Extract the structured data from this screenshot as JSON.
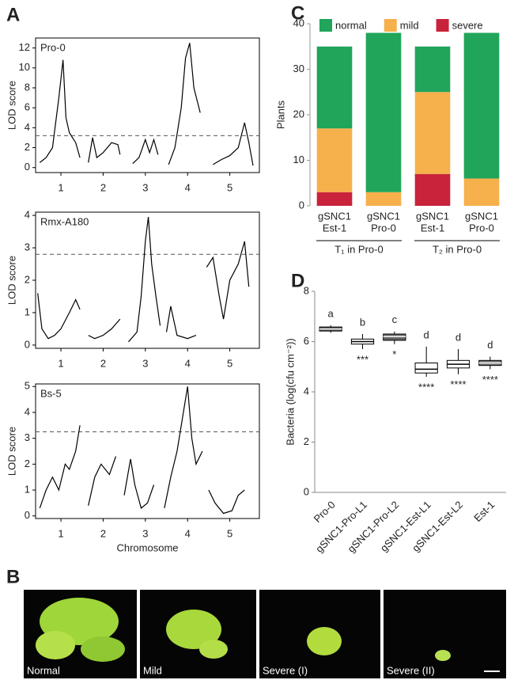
{
  "panel_labels": [
    "A",
    "B",
    "C",
    "D"
  ],
  "photos": {
    "captions": [
      "Normal",
      "Mild",
      "Severe (I)",
      "Severe (II)"
    ]
  },
  "chart_data": [
    {
      "type": "line",
      "title": "Pro-0",
      "y_label": "LOD score",
      "threshold": 3.2,
      "x": [
        0.5,
        0.65,
        0.8,
        0.95,
        1.05,
        1.12,
        1.2,
        1.35,
        1.45,
        null,
        1.65,
        1.75,
        1.85,
        2.0,
        2.2,
        2.35,
        2.4,
        null,
        2.7,
        2.85,
        3.0,
        3.1,
        3.2,
        3.3,
        null,
        3.55,
        3.7,
        3.85,
        3.95,
        4.05,
        4.15,
        4.3,
        null,
        4.6,
        4.8,
        5.0,
        5.2,
        5.35,
        5.45,
        5.55
      ],
      "values": [
        0.5,
        1,
        2,
        7,
        10.8,
        5,
        3.5,
        2.5,
        1,
        null,
        0.5,
        3,
        1,
        1.5,
        2.5,
        2.3,
        1.3,
        null,
        0.4,
        1,
        2.8,
        1.5,
        2.8,
        1.3,
        null,
        0.3,
        2,
        6,
        11,
        12.5,
        8,
        5.5,
        null,
        0.3,
        0.8,
        1.2,
        2,
        4.5,
        2.5,
        0.2
      ],
      "xlim": [
        0.4,
        5.7
      ],
      "xticks": [
        1,
        2,
        3,
        4,
        5
      ],
      "ylim": [
        -0.5,
        13
      ],
      "yticks": [
        0,
        2,
        4,
        6,
        8,
        10,
        12
      ]
    },
    {
      "type": "line",
      "title": "Rmx-A180",
      "y_label": "LOD score",
      "threshold": 2.8,
      "x": [
        0.45,
        0.55,
        0.7,
        0.85,
        1.0,
        1.2,
        1.35,
        1.45,
        null,
        1.65,
        1.8,
        2.0,
        2.2,
        2.4,
        null,
        2.6,
        2.8,
        2.9,
        3.0,
        3.07,
        3.15,
        3.25,
        3.35,
        null,
        3.5,
        3.6,
        3.75,
        4.0,
        4.2,
        null,
        4.45,
        4.6,
        4.75,
        4.85,
        5.0,
        5.2,
        5.35,
        5.45
      ],
      "values": [
        1.6,
        0.5,
        0.2,
        0.3,
        0.5,
        1.0,
        1.4,
        1.1,
        null,
        0.3,
        0.2,
        0.3,
        0.5,
        0.8,
        null,
        0.1,
        0.4,
        1.5,
        3.2,
        3.95,
        2.5,
        1.5,
        0.6,
        null,
        0.4,
        1.2,
        0.3,
        0.2,
        0.3,
        null,
        2.4,
        2.7,
        1.5,
        0.8,
        2.0,
        2.5,
        3.2,
        1.8
      ],
      "xlim": [
        0.4,
        5.7
      ],
      "xticks": [
        1,
        2,
        3,
        4,
        5
      ],
      "ylim": [
        -0.1,
        4.1
      ],
      "yticks": [
        0,
        1,
        2,
        3,
        4
      ]
    },
    {
      "type": "line",
      "title": "Bs-5",
      "y_label": "LOD score",
      "x_label": "Chromosome",
      "threshold": 3.25,
      "x": [
        0.5,
        0.65,
        0.8,
        0.95,
        1.1,
        1.2,
        1.35,
        1.45,
        null,
        1.65,
        1.8,
        1.95,
        2.15,
        2.3,
        null,
        2.5,
        2.65,
        2.75,
        2.9,
        3.05,
        3.2,
        null,
        3.45,
        3.6,
        3.75,
        3.9,
        4.0,
        4.1,
        4.2,
        4.35,
        null,
        4.5,
        4.65,
        4.85,
        5.05,
        5.2,
        5.35
      ],
      "values": [
        0.3,
        1.0,
        1.5,
        1.0,
        2.0,
        1.8,
        2.5,
        3.5,
        null,
        0.4,
        1.5,
        2.0,
        1.6,
        2.3,
        null,
        0.8,
        2.2,
        1.2,
        0.3,
        0.5,
        1.2,
        null,
        0.3,
        1.5,
        2.5,
        4.0,
        5.0,
        3.0,
        2.0,
        2.5,
        null,
        1.0,
        0.5,
        0.1,
        0.2,
        0.8,
        1.0
      ],
      "xlim": [
        0.4,
        5.7
      ],
      "xticks": [
        1,
        2,
        3,
        4,
        5
      ],
      "ylim": [
        -0.1,
        5.1
      ],
      "yticks": [
        0,
        1,
        2,
        3,
        4,
        5
      ]
    },
    {
      "type": "bar",
      "stacked": true,
      "y_label": "Plants",
      "categories": [
        [
          "gSNC1",
          "Est-1"
        ],
        [
          "gSNC1",
          "Pro-0"
        ],
        [
          "gSNC1",
          "Est-1"
        ],
        [
          "gSNC1",
          "Pro-0"
        ]
      ],
      "group_labels": [
        "T₁ in Pro-0",
        "T₂ in Pro-0"
      ],
      "series": [
        {
          "name": "severe",
          "color": "#c8233a",
          "values": [
            3,
            0,
            7,
            0
          ]
        },
        {
          "name": "mild",
          "color": "#f6b04c",
          "values": [
            14,
            3,
            18,
            6
          ]
        },
        {
          "name": "normal",
          "color": "#20a55b",
          "values": [
            18,
            35,
            10,
            32
          ]
        }
      ],
      "legend_order": [
        "normal",
        "mild",
        "severe"
      ],
      "ylim": [
        0,
        40
      ],
      "yticks": [
        0,
        10,
        20,
        30,
        40
      ]
    },
    {
      "type": "box",
      "y_label": "Bacteria (log(cfu cm⁻²))",
      "categories": [
        "Pro-0",
        "gSNC1-Pro-L1",
        "gSNC1-Pro-L2",
        "gSNC1-Est-L1",
        "gSNC1-Est-L2",
        "Est-1"
      ],
      "min": [
        6.35,
        5.7,
        5.9,
        4.6,
        4.7,
        4.9
      ],
      "q1": [
        6.42,
        5.9,
        6.05,
        4.75,
        4.95,
        5.05
      ],
      "median": [
        6.5,
        6.0,
        6.2,
        4.9,
        5.1,
        5.15
      ],
      "q3": [
        6.58,
        6.1,
        6.3,
        5.15,
        5.25,
        5.25
      ],
      "max": [
        6.65,
        6.3,
        6.4,
        5.8,
        5.7,
        5.4
      ],
      "box_colors": [
        "#555555",
        "#ffffff",
        "#666666",
        "#ffffff",
        "#ffffff",
        "#777777"
      ],
      "letters": [
        "a",
        "b",
        "c",
        "d",
        "d",
        "d"
      ],
      "stars": [
        null,
        "***",
        "*",
        "****",
        "****",
        "****"
      ],
      "ylim": [
        0,
        8
      ],
      "yticks": [
        0,
        2,
        4,
        6,
        8
      ]
    }
  ]
}
